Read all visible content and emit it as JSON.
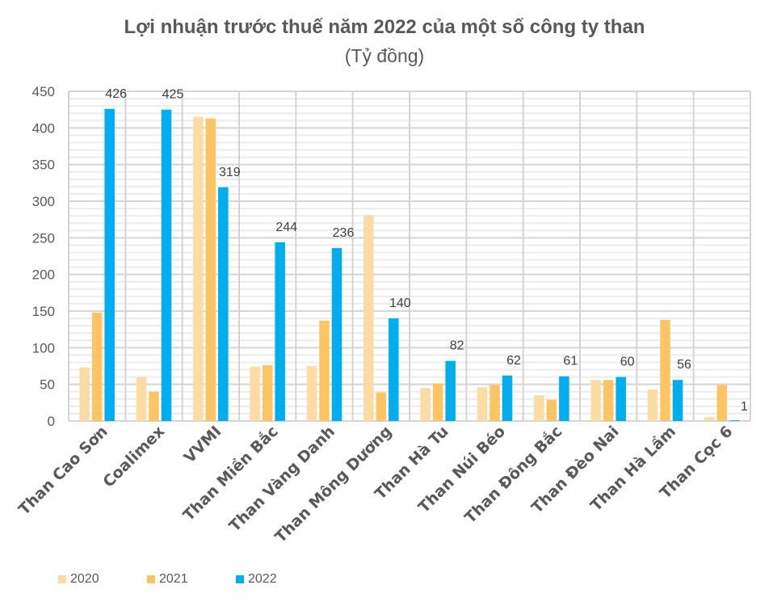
{
  "chart_data": {
    "type": "bar",
    "title": "Lợi nhuận trước thuế năm 2022 của một số công ty than",
    "subtitle": "(Tỷ đồng)",
    "xlabel": "",
    "ylabel": "",
    "ylim": [
      0,
      450
    ],
    "yticks": [
      0,
      50,
      100,
      150,
      200,
      250,
      300,
      350,
      400,
      450
    ],
    "minor_tick_step": 10,
    "grid": true,
    "legend_position": "bottom-left",
    "categories": [
      "Than Cao Sơn",
      "Coalimex",
      "VVMI",
      "Than Miền Bắc",
      "Than Vàng Danh",
      "Than Mông Dương",
      "Than Hà Tu",
      "Than Núi Béo",
      "Than Đông Bắc",
      "Than Đèo Nai",
      "Than Hà Lầm",
      "Than Cọc 6"
    ],
    "series": [
      {
        "name": "2020",
        "color": "#FDDBA5",
        "values": [
          73,
          60,
          415,
          74,
          75,
          281,
          45,
          46,
          35,
          56,
          43,
          5
        ],
        "labeled": false
      },
      {
        "name": "2021",
        "color": "#FDC463",
        "values": [
          148,
          40,
          413,
          76,
          137,
          39,
          51,
          49,
          29,
          56,
          138,
          49
        ],
        "labeled": false
      },
      {
        "name": "2022",
        "color": "#00ADEF",
        "values": [
          426,
          425,
          319,
          244,
          236,
          140,
          82,
          62,
          61,
          60,
          56,
          1
        ],
        "labeled": true
      }
    ],
    "data_labels": [
      "426",
      "425",
      "319",
      "244",
      "236",
      "140",
      "82",
      "62",
      "61",
      "60",
      "56",
      "1"
    ]
  }
}
